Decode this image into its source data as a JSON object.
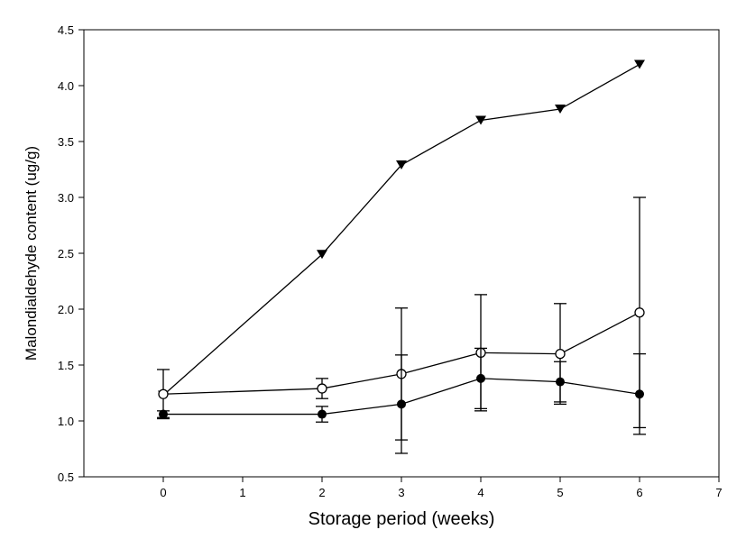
{
  "chart_data": {
    "type": "line",
    "title": "",
    "xlabel": "Storage period (weeks)",
    "ylabel": "Malondialdehyde content (ug/g)",
    "xlim": [
      -1,
      7
    ],
    "ylim": [
      0.5,
      4.5
    ],
    "xticks": [
      0,
      1,
      2,
      3,
      4,
      5,
      6,
      7
    ],
    "yticks": [
      0.5,
      1.0,
      1.5,
      2.0,
      2.5,
      3.0,
      3.5,
      4.0,
      4.5
    ],
    "xtick_labels": [
      "0",
      "1",
      "2",
      "3",
      "4",
      "5",
      "6",
      "7"
    ],
    "ytick_labels": [
      "0.5",
      "1.0",
      "1.5",
      "2.0",
      "2.5",
      "3.0",
      "3.5",
      "4.0",
      "4.5"
    ],
    "grid": false,
    "legend": "none",
    "series": [
      {
        "marker": "triangle-down-filled",
        "color": "#000000",
        "x": [
          0,
          2,
          3,
          4,
          5,
          6
        ],
        "y": [
          1.23,
          2.49,
          3.29,
          3.69,
          3.79,
          4.19
        ]
      },
      {
        "marker": "circle-open",
        "color": "#000000",
        "x": [
          0,
          2,
          3,
          4,
          5,
          6
        ],
        "y": [
          1.24,
          1.29,
          1.42,
          1.61,
          1.6,
          1.97
        ],
        "err": [
          0.22,
          0.09,
          0.59,
          0.52,
          0.45,
          1.03
        ]
      },
      {
        "marker": "circle-filled",
        "color": "#000000",
        "x": [
          0,
          2,
          3,
          4,
          5,
          6
        ],
        "y": [
          1.06,
          1.06,
          1.15,
          1.38,
          1.35,
          1.24
        ],
        "err": [
          0.03,
          0.07,
          0.44,
          0.27,
          0.18,
          0.36
        ]
      }
    ]
  }
}
